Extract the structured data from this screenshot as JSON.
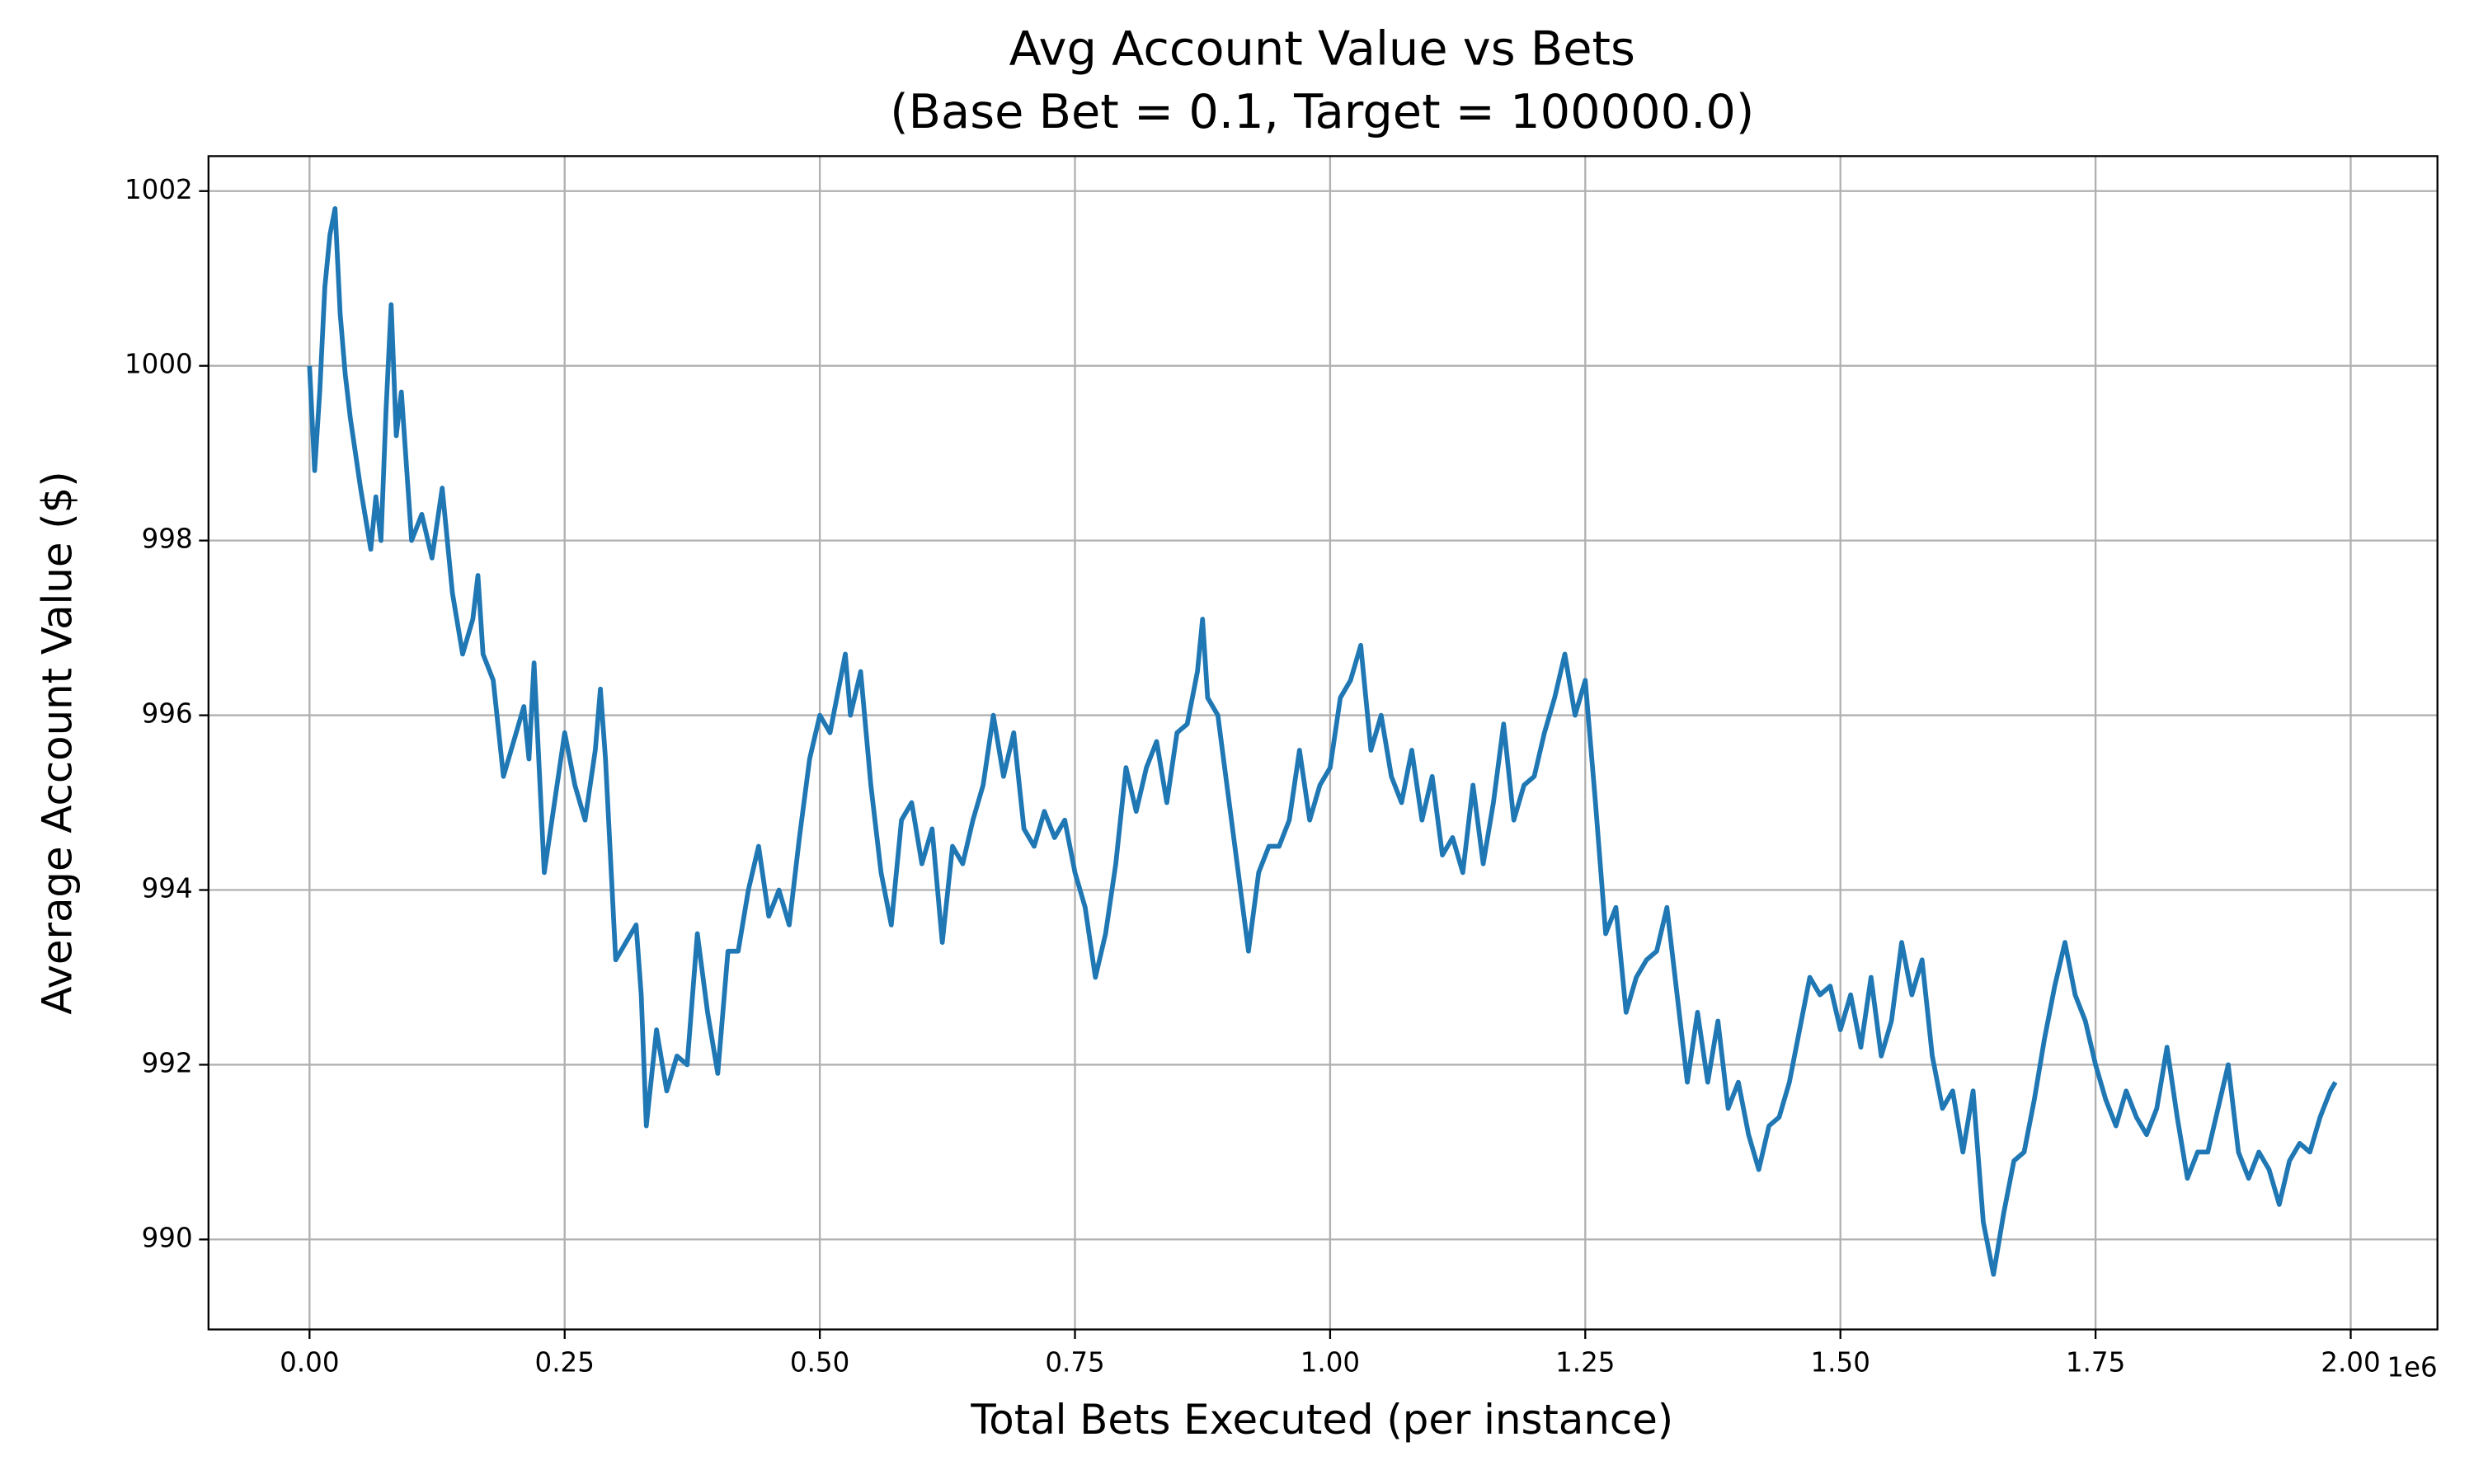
{
  "chart_data": {
    "type": "line",
    "title": "Avg Account Value vs Bets",
    "subtitle": "(Base Bet = 0.1, Target = 100000.0)",
    "x_label": "Total Bets Executed (per instance)",
    "y_label": "Average Account Value ($)",
    "x_offset_label": "1e6",
    "color": "#1f77b4",
    "grid": true,
    "xlim": [
      -99000,
      2085000
    ],
    "ylim": [
      988.97,
      1002.4
    ],
    "xticks": [
      {
        "value": 0,
        "label": "0.00"
      },
      {
        "value": 250000,
        "label": "0.25"
      },
      {
        "value": 500000,
        "label": "0.50"
      },
      {
        "value": 750000,
        "label": "0.75"
      },
      {
        "value": 1000000,
        "label": "1.00"
      },
      {
        "value": 1250000,
        "label": "1.25"
      },
      {
        "value": 1500000,
        "label": "1.50"
      },
      {
        "value": 1750000,
        "label": "1.75"
      },
      {
        "value": 2000000,
        "label": "2.00"
      }
    ],
    "yticks": [
      990,
      992,
      994,
      996,
      998,
      1000,
      1002
    ],
    "x": [
      0,
      5000,
      10000,
      15000,
      20000,
      25000,
      30000,
      35000,
      40000,
      50000,
      60000,
      65000,
      70000,
      75000,
      80000,
      85000,
      90000,
      100000,
      110000,
      120000,
      130000,
      140000,
      150000,
      160000,
      165000,
      170000,
      180000,
      190000,
      200000,
      210000,
      215000,
      220000,
      230000,
      240000,
      250000,
      260000,
      270000,
      280000,
      285000,
      290000,
      300000,
      310000,
      320000,
      325000,
      330000,
      340000,
      350000,
      360000,
      370000,
      380000,
      390000,
      400000,
      410000,
      420000,
      430000,
      440000,
      450000,
      460000,
      470000,
      480000,
      490000,
      500000,
      510000,
      520000,
      525000,
      530000,
      540000,
      550000,
      560000,
      570000,
      580000,
      590000,
      600000,
      610000,
      620000,
      630000,
      640000,
      650000,
      660000,
      670000,
      680000,
      690000,
      700000,
      710000,
      720000,
      730000,
      740000,
      750000,
      760000,
      770000,
      780000,
      790000,
      800000,
      810000,
      820000,
      830000,
      840000,
      850000,
      860000,
      870000,
      875000,
      880000,
      890000,
      900000,
      910000,
      920000,
      930000,
      940000,
      950000,
      960000,
      970000,
      980000,
      990000,
      1000000,
      1010000,
      1020000,
      1030000,
      1040000,
      1050000,
      1060000,
      1070000,
      1080000,
      1090000,
      1100000,
      1110000,
      1120000,
      1130000,
      1140000,
      1150000,
      1160000,
      1170000,
      1180000,
      1190000,
      1200000,
      1210000,
      1220000,
      1230000,
      1240000,
      1250000,
      1260000,
      1270000,
      1280000,
      1290000,
      1300000,
      1310000,
      1320000,
      1330000,
      1340000,
      1350000,
      1360000,
      1370000,
      1380000,
      1390000,
      1400000,
      1410000,
      1420000,
      1430000,
      1440000,
      1450000,
      1460000,
      1470000,
      1480000,
      1490000,
      1500000,
      1510000,
      1520000,
      1530000,
      1540000,
      1550000,
      1560000,
      1570000,
      1580000,
      1590000,
      1600000,
      1610000,
      1620000,
      1630000,
      1640000,
      1650000,
      1660000,
      1670000,
      1680000,
      1690000,
      1700000,
      1710000,
      1720000,
      1730000,
      1740000,
      1750000,
      1760000,
      1770000,
      1780000,
      1790000,
      1800000,
      1810000,
      1820000,
      1830000,
      1840000,
      1850000,
      1860000,
      1870000,
      1880000,
      1890000,
      1900000,
      1910000,
      1920000,
      1930000,
      1940000,
      1950000,
      1960000,
      1970000,
      1980000,
      1985000
    ],
    "values": [
      1000.0,
      998.8,
      999.7,
      1000.9,
      1001.5,
      1001.8,
      1000.6,
      999.9,
      999.4,
      998.6,
      997.9,
      998.5,
      998.0,
      999.5,
      1000.7,
      999.2,
      999.7,
      998.0,
      998.3,
      997.8,
      998.6,
      997.4,
      996.7,
      997.1,
      997.6,
      996.7,
      996.4,
      995.3,
      995.7,
      996.1,
      995.5,
      996.6,
      994.2,
      995.0,
      995.8,
      995.2,
      994.8,
      995.6,
      996.3,
      995.5,
      993.2,
      993.4,
      993.6,
      992.8,
      991.3,
      992.4,
      991.7,
      992.1,
      992.0,
      993.5,
      992.6,
      991.9,
      993.3,
      993.3,
      994.0,
      994.5,
      993.7,
      994.0,
      993.6,
      994.6,
      995.5,
      996.0,
      995.8,
      996.4,
      996.7,
      996.0,
      996.5,
      995.2,
      994.2,
      993.6,
      994.8,
      995.0,
      994.3,
      994.7,
      993.4,
      994.5,
      994.3,
      994.8,
      995.2,
      996.0,
      995.3,
      995.8,
      994.7,
      994.5,
      994.9,
      994.6,
      994.8,
      994.2,
      993.8,
      993.0,
      993.5,
      994.3,
      995.4,
      994.9,
      995.4,
      995.7,
      995.0,
      995.8,
      995.9,
      996.5,
      997.1,
      996.2,
      996.0,
      995.1,
      994.2,
      993.3,
      994.2,
      994.5,
      994.5,
      994.8,
      995.6,
      994.8,
      995.2,
      995.4,
      996.2,
      996.4,
      996.8,
      995.6,
      996.0,
      995.3,
      995.0,
      995.6,
      994.8,
      995.3,
      994.4,
      994.6,
      994.2,
      995.2,
      994.3,
      995.0,
      995.9,
      994.8,
      995.2,
      995.3,
      995.8,
      996.2,
      996.7,
      996.0,
      996.4,
      995.0,
      993.5,
      993.8,
      992.6,
      993.0,
      993.2,
      993.3,
      993.8,
      992.8,
      991.8,
      992.6,
      991.8,
      992.5,
      991.5,
      991.8,
      991.2,
      990.8,
      991.3,
      991.4,
      991.8,
      992.4,
      993.0,
      992.8,
      992.9,
      992.4,
      992.8,
      992.2,
      993.0,
      992.1,
      992.5,
      993.4,
      992.8,
      993.2,
      992.1,
      991.5,
      991.7,
      991.0,
      991.7,
      990.2,
      989.6,
      990.3,
      990.9,
      991.0,
      991.6,
      992.3,
      992.9,
      993.4,
      992.8,
      992.5,
      992.0,
      991.6,
      991.3,
      991.7,
      991.4,
      991.2,
      991.5,
      992.2,
      991.4,
      990.7,
      991.0,
      991.0,
      991.5,
      992.0,
      991.0,
      990.7,
      991.0,
      990.8,
      990.4,
      990.9,
      991.1,
      991.0,
      991.4,
      991.7,
      991.8
    ]
  }
}
